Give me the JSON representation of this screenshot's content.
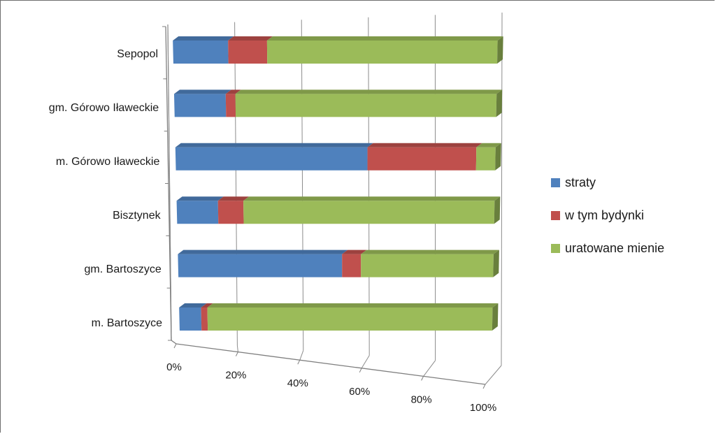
{
  "chart_data": {
    "type": "bar",
    "orientation": "horizontal",
    "stacked": "percent",
    "style": "3d",
    "categories": [
      "Sepopol",
      "gm. Górowo Iławeckie",
      "m. Górowo Iławeckie",
      "Bisztynek",
      "gm. Bartoszyce",
      "m. Bartoszyce"
    ],
    "series": [
      {
        "name": "straty",
        "color": "#4f81bd",
        "values": [
          17,
          16,
          60,
          13,
          52,
          7
        ]
      },
      {
        "name": "w tym bydynki",
        "color": "#c0504d",
        "values": [
          12,
          3,
          34,
          8,
          6,
          2
        ]
      },
      {
        "name": "uratowane mienie",
        "color": "#9bbb59",
        "values": [
          71,
          81,
          6,
          79,
          42,
          91
        ]
      }
    ],
    "x_ticks": [
      "0%",
      "20%",
      "40%",
      "60%",
      "80%",
      "100%"
    ],
    "xlim": [
      0,
      100
    ],
    "grid": true,
    "legend_position": "right",
    "title": "",
    "xlabel": "",
    "ylabel": ""
  }
}
